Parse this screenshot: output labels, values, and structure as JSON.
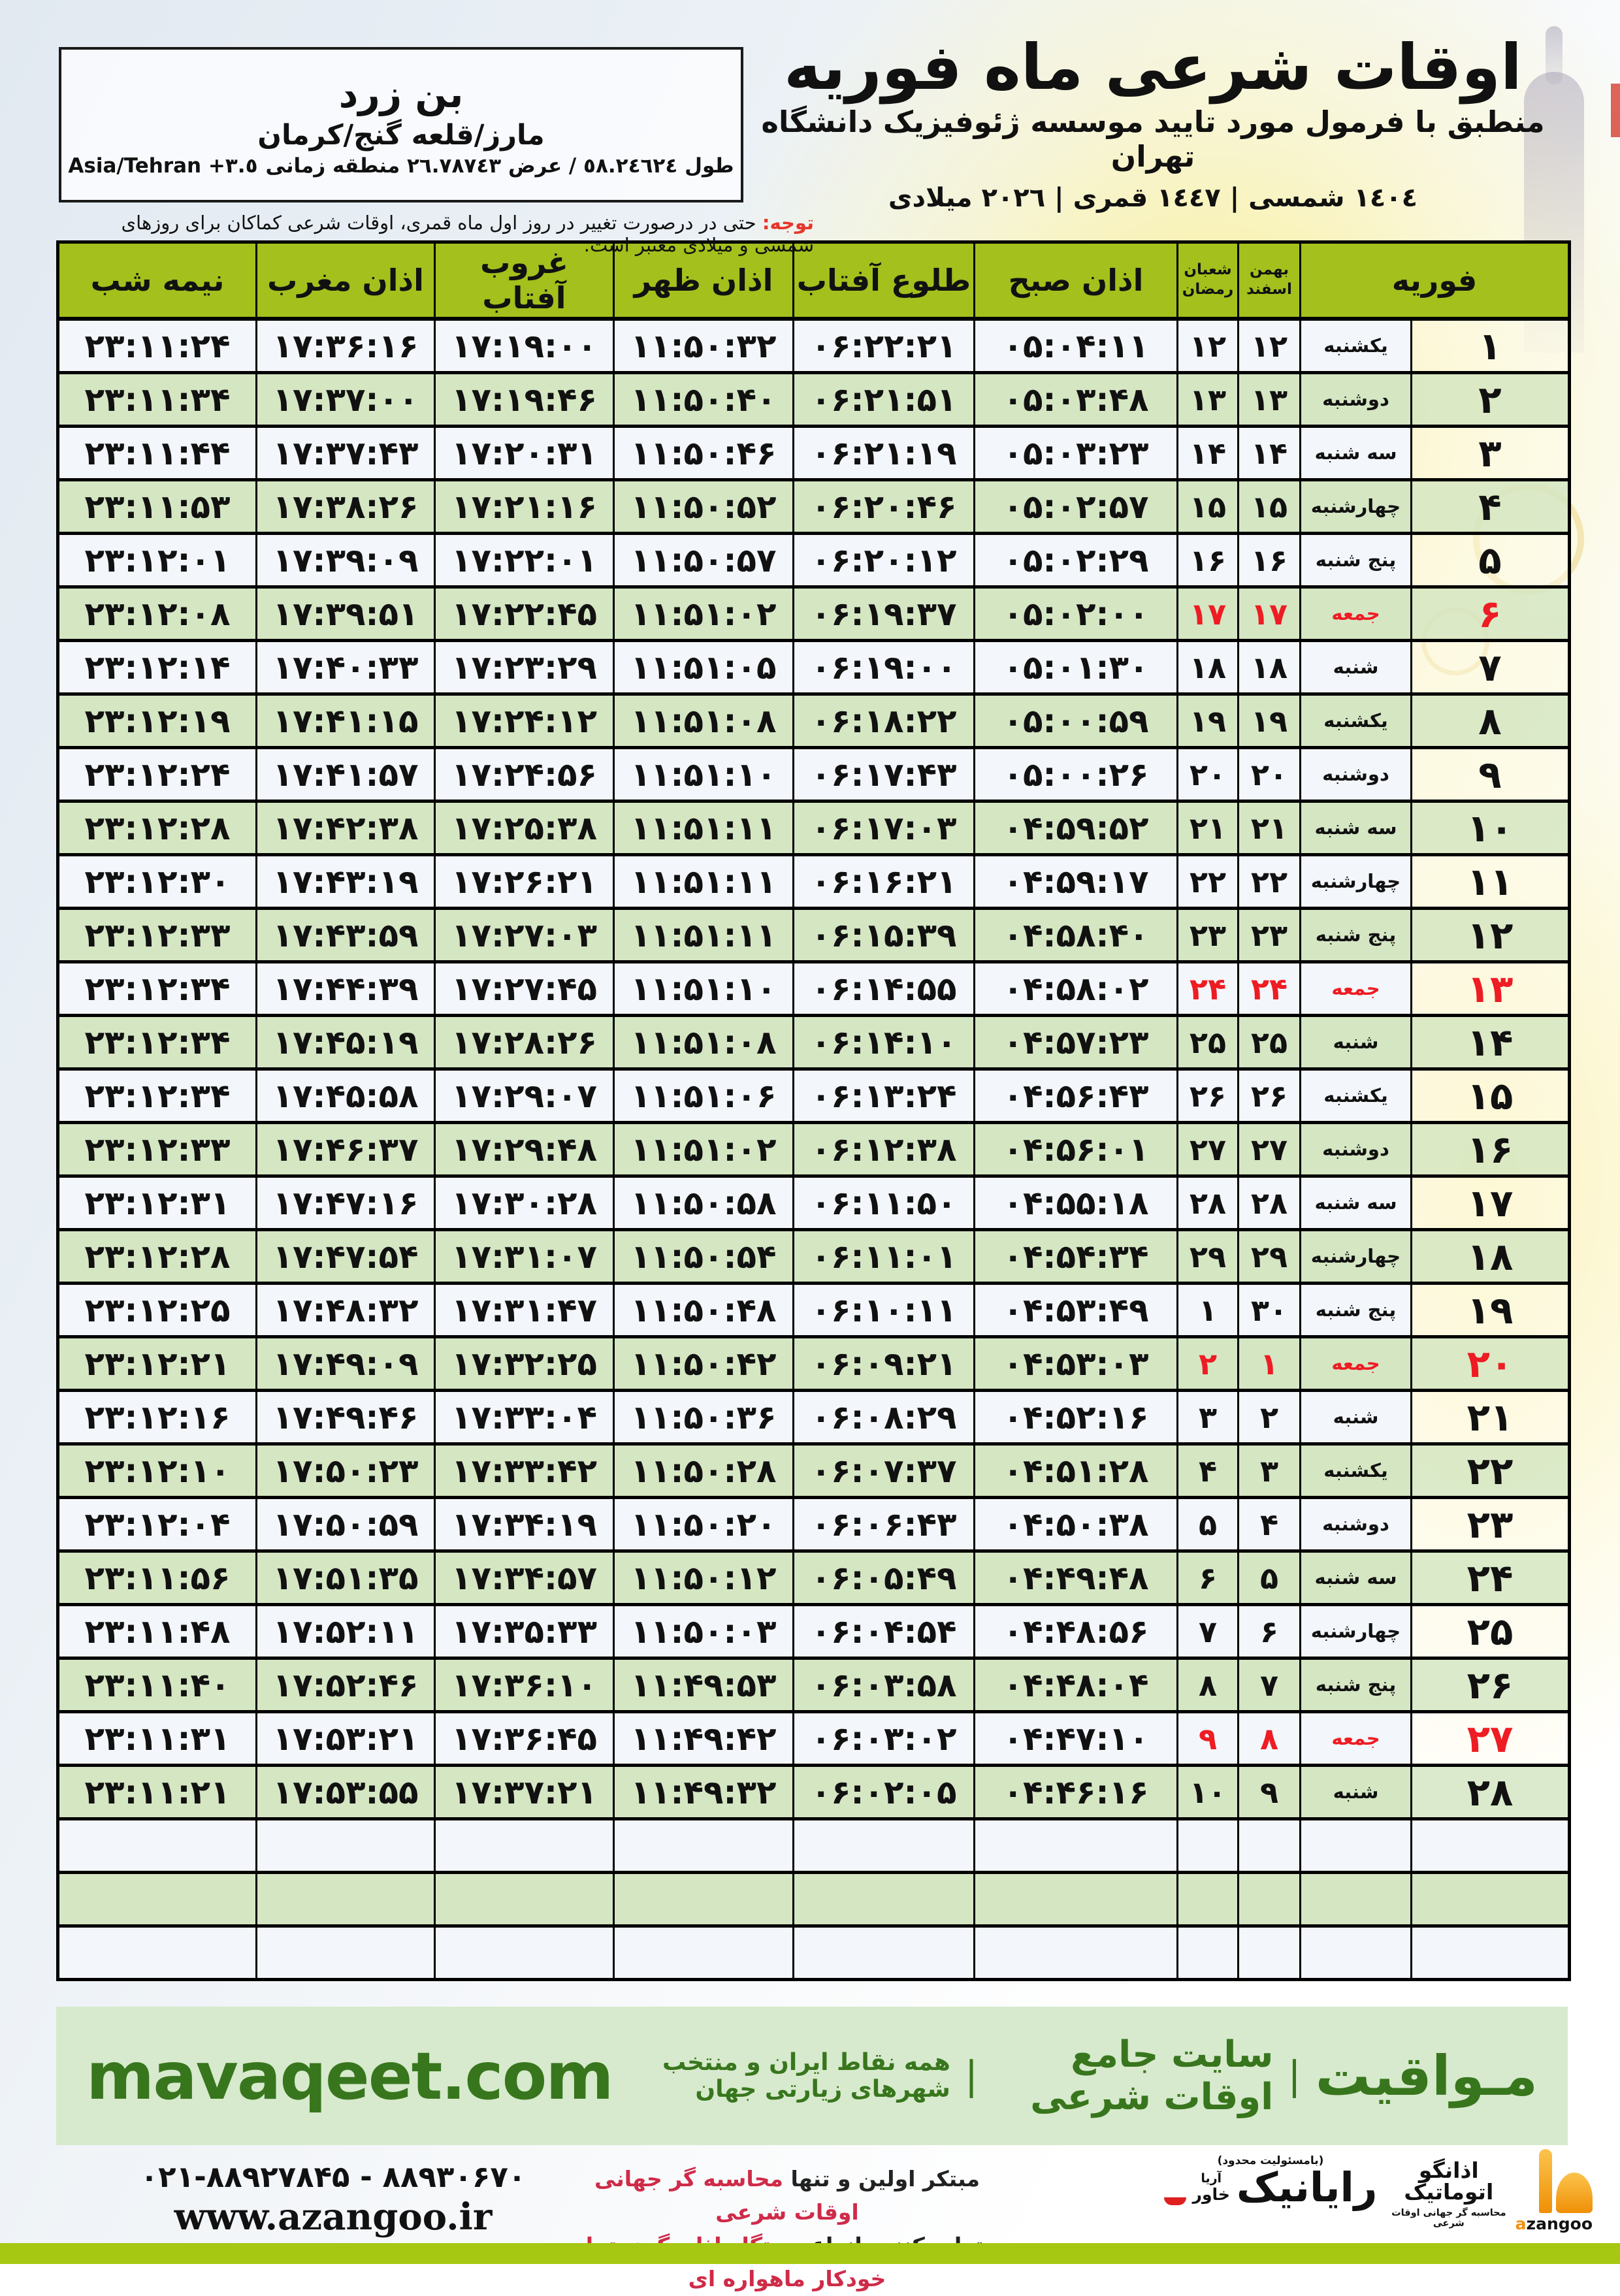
{
  "colors": {
    "header_green": "#a3c01c",
    "row_green": "#d5e6c3",
    "friday_red": "#ee1c23",
    "note_red": "#e8342a",
    "band_green": "#d7eacd",
    "brand_green": "#38761d",
    "bottom_band": "#a6c813",
    "footer_red": "#cf2b49"
  },
  "header": {
    "title": "اوقات شرعی ماه فوریه",
    "subtitle": "منطبق با فرمول مورد تایید موسسه ژئوفیزیک دانشگاه تهران",
    "calendar_line": "١٤٠٤ شمسی | ١٤٤٧ قمری | ٢٠٢٦ میلادی"
  },
  "location": {
    "name": "بن زرد",
    "region": "مارز/قلعه گنج/کرمان",
    "coords_rtl": "طول ٥٨.٢٤٦٢٤ / عرض ٢٦.٧٨٧٤٣ منطقه زمانی",
    "timezone": "Asia/Tehran +٣.٥"
  },
  "note": {
    "label": "توجه:",
    "text": "حتی در درصورت تغییر در روز اول ماه قمری، اوقات شرعی کماکان برای روزهای شمسی و میلادی معتبر است."
  },
  "table": {
    "header": {
      "february": "فوریه",
      "bahman": "بهمن",
      "esfand": "اسفند",
      "shaban": "شعبان",
      "ramazan": "رمضان",
      "azan_sobh": "اذان صبح",
      "tolu_aftab": "طلوع آفتاب",
      "azan_zohr": "اذان ظهر",
      "ghorub_aftab": "غروب آفتاب",
      "azan_maghreb": "اذان مغرب",
      "nimeh_shab": "نیمه شب"
    },
    "empty_rows": 3,
    "rows": [
      {
        "feb": "۱",
        "weekday": "یکشنبه",
        "bahman": "۱۲",
        "shaban": "۱۲",
        "sobh": "۰۵:۰۴:۱۱",
        "tolu": "۰۶:۲۲:۲۱",
        "zohr": "۱۱:۵۰:۳۲",
        "ghorub": "۱۷:۱۹:۰۰",
        "maghreb": "۱۷:۳۶:۱۶",
        "nimeshab": "۲۳:۱۱:۲۴",
        "friday": false
      },
      {
        "feb": "۲",
        "weekday": "دوشنبه",
        "bahman": "۱۳",
        "shaban": "۱۳",
        "sobh": "۰۵:۰۳:۴۸",
        "tolu": "۰۶:۲۱:۵۱",
        "zohr": "۱۱:۵۰:۴۰",
        "ghorub": "۱۷:۱۹:۴۶",
        "maghreb": "۱۷:۳۷:۰۰",
        "nimeshab": "۲۳:۱۱:۳۴",
        "friday": false
      },
      {
        "feb": "۳",
        "weekday": "سه شنبه",
        "bahman": "۱۴",
        "shaban": "۱۴",
        "sobh": "۰۵:۰۳:۲۳",
        "tolu": "۰۶:۲۱:۱۹",
        "zohr": "۱۱:۵۰:۴۶",
        "ghorub": "۱۷:۲۰:۳۱",
        "maghreb": "۱۷:۳۷:۴۳",
        "nimeshab": "۲۳:۱۱:۴۴",
        "friday": false
      },
      {
        "feb": "۴",
        "weekday": "چهارشنبه",
        "bahman": "۱۵",
        "shaban": "۱۵",
        "sobh": "۰۵:۰۲:۵۷",
        "tolu": "۰۶:۲۰:۴۶",
        "zohr": "۱۱:۵۰:۵۲",
        "ghorub": "۱۷:۲۱:۱۶",
        "maghreb": "۱۷:۳۸:۲۶",
        "nimeshab": "۲۳:۱۱:۵۳",
        "friday": false
      },
      {
        "feb": "۵",
        "weekday": "پنج شنبه",
        "bahman": "۱۶",
        "shaban": "۱۶",
        "sobh": "۰۵:۰۲:۲۹",
        "tolu": "۰۶:۲۰:۱۲",
        "zohr": "۱۱:۵۰:۵۷",
        "ghorub": "۱۷:۲۲:۰۱",
        "maghreb": "۱۷:۳۹:۰۹",
        "nimeshab": "۲۳:۱۲:۰۱",
        "friday": false
      },
      {
        "feb": "۶",
        "weekday": "جمعه",
        "bahman": "۱۷",
        "shaban": "۱۷",
        "sobh": "۰۵:۰۲:۰۰",
        "tolu": "۰۶:۱۹:۳۷",
        "zohr": "۱۱:۵۱:۰۲",
        "ghorub": "۱۷:۲۲:۴۵",
        "maghreb": "۱۷:۳۹:۵۱",
        "nimeshab": "۲۳:۱۲:۰۸",
        "friday": true
      },
      {
        "feb": "۷",
        "weekday": "شنبه",
        "bahman": "۱۸",
        "shaban": "۱۸",
        "sobh": "۰۵:۰۱:۳۰",
        "tolu": "۰۶:۱۹:۰۰",
        "zohr": "۱۱:۵۱:۰۵",
        "ghorub": "۱۷:۲۳:۲۹",
        "maghreb": "۱۷:۴۰:۳۳",
        "nimeshab": "۲۳:۱۲:۱۴",
        "friday": false
      },
      {
        "feb": "۸",
        "weekday": "یکشنبه",
        "bahman": "۱۹",
        "shaban": "۱۹",
        "sobh": "۰۵:۰۰:۵۹",
        "tolu": "۰۶:۱۸:۲۲",
        "zohr": "۱۱:۵۱:۰۸",
        "ghorub": "۱۷:۲۴:۱۲",
        "maghreb": "۱۷:۴۱:۱۵",
        "nimeshab": "۲۳:۱۲:۱۹",
        "friday": false
      },
      {
        "feb": "۹",
        "weekday": "دوشنبه",
        "bahman": "۲۰",
        "shaban": "۲۰",
        "sobh": "۰۵:۰۰:۲۶",
        "tolu": "۰۶:۱۷:۴۳",
        "zohr": "۱۱:۵۱:۱۰",
        "ghorub": "۱۷:۲۴:۵۶",
        "maghreb": "۱۷:۴۱:۵۷",
        "nimeshab": "۲۳:۱۲:۲۴",
        "friday": false
      },
      {
        "feb": "۱۰",
        "weekday": "سه شنبه",
        "bahman": "۲۱",
        "shaban": "۲۱",
        "sobh": "۰۴:۵۹:۵۲",
        "tolu": "۰۶:۱۷:۰۳",
        "zohr": "۱۱:۵۱:۱۱",
        "ghorub": "۱۷:۲۵:۳۸",
        "maghreb": "۱۷:۴۲:۳۸",
        "nimeshab": "۲۳:۱۲:۲۸",
        "friday": false
      },
      {
        "feb": "۱۱",
        "weekday": "چهارشنبه",
        "bahman": "۲۲",
        "shaban": "۲۲",
        "sobh": "۰۴:۵۹:۱۷",
        "tolu": "۰۶:۱۶:۲۱",
        "zohr": "۱۱:۵۱:۱۱",
        "ghorub": "۱۷:۲۶:۲۱",
        "maghreb": "۱۷:۴۳:۱۹",
        "nimeshab": "۲۳:۱۲:۳۰",
        "friday": false
      },
      {
        "feb": "۱۲",
        "weekday": "پنج شنبه",
        "bahman": "۲۳",
        "shaban": "۲۳",
        "sobh": "۰۴:۵۸:۴۰",
        "tolu": "۰۶:۱۵:۳۹",
        "zohr": "۱۱:۵۱:۱۱",
        "ghorub": "۱۷:۲۷:۰۳",
        "maghreb": "۱۷:۴۳:۵۹",
        "nimeshab": "۲۳:۱۲:۳۳",
        "friday": false
      },
      {
        "feb": "۱۳",
        "weekday": "جمعه",
        "bahman": "۲۴",
        "shaban": "۲۴",
        "sobh": "۰۴:۵۸:۰۲",
        "tolu": "۰۶:۱۴:۵۵",
        "zohr": "۱۱:۵۱:۱۰",
        "ghorub": "۱۷:۲۷:۴۵",
        "maghreb": "۱۷:۴۴:۳۹",
        "nimeshab": "۲۳:۱۲:۳۴",
        "friday": true
      },
      {
        "feb": "۱۴",
        "weekday": "شنبه",
        "bahman": "۲۵",
        "shaban": "۲۵",
        "sobh": "۰۴:۵۷:۲۳",
        "tolu": "۰۶:۱۴:۱۰",
        "zohr": "۱۱:۵۱:۰۸",
        "ghorub": "۱۷:۲۸:۲۶",
        "maghreb": "۱۷:۴۵:۱۹",
        "nimeshab": "۲۳:۱۲:۳۴",
        "friday": false
      },
      {
        "feb": "۱۵",
        "weekday": "یکشنبه",
        "bahman": "۲۶",
        "shaban": "۲۶",
        "sobh": "۰۴:۵۶:۴۳",
        "tolu": "۰۶:۱۳:۲۴",
        "zohr": "۱۱:۵۱:۰۶",
        "ghorub": "۱۷:۲۹:۰۷",
        "maghreb": "۱۷:۴۵:۵۸",
        "nimeshab": "۲۳:۱۲:۳۴",
        "friday": false
      },
      {
        "feb": "۱۶",
        "weekday": "دوشنبه",
        "bahman": "۲۷",
        "shaban": "۲۷",
        "sobh": "۰۴:۵۶:۰۱",
        "tolu": "۰۶:۱۲:۳۸",
        "zohr": "۱۱:۵۱:۰۲",
        "ghorub": "۱۷:۲۹:۴۸",
        "maghreb": "۱۷:۴۶:۳۷",
        "nimeshab": "۲۳:۱۲:۳۳",
        "friday": false
      },
      {
        "feb": "۱۷",
        "weekday": "سه شنبه",
        "bahman": "۲۸",
        "shaban": "۲۸",
        "sobh": "۰۴:۵۵:۱۸",
        "tolu": "۰۶:۱۱:۵۰",
        "zohr": "۱۱:۵۰:۵۸",
        "ghorub": "۱۷:۳۰:۲۸",
        "maghreb": "۱۷:۴۷:۱۶",
        "nimeshab": "۲۳:۱۲:۳۱",
        "friday": false
      },
      {
        "feb": "۱۸",
        "weekday": "چهارشنبه",
        "bahman": "۲۹",
        "shaban": "۲۹",
        "sobh": "۰۴:۵۴:۳۴",
        "tolu": "۰۶:۱۱:۰۱",
        "zohr": "۱۱:۵۰:۵۴",
        "ghorub": "۱۷:۳۱:۰۷",
        "maghreb": "۱۷:۴۷:۵۴",
        "nimeshab": "۲۳:۱۲:۲۸",
        "friday": false
      },
      {
        "feb": "۱۹",
        "weekday": "پنج شنبه",
        "bahman": "۳۰",
        "shaban": "۱",
        "sobh": "۰۴:۵۳:۴۹",
        "tolu": "۰۶:۱۰:۱۱",
        "zohr": "۱۱:۵۰:۴۸",
        "ghorub": "۱۷:۳۱:۴۷",
        "maghreb": "۱۷:۴۸:۳۲",
        "nimeshab": "۲۳:۱۲:۲۵",
        "friday": false
      },
      {
        "feb": "۲۰",
        "weekday": "جمعه",
        "bahman": "۱",
        "shaban": "۲",
        "sobh": "۰۴:۵۳:۰۳",
        "tolu": "۰۶:۰۹:۲۱",
        "zohr": "۱۱:۵۰:۴۲",
        "ghorub": "۱۷:۳۲:۲۵",
        "maghreb": "۱۷:۴۹:۰۹",
        "nimeshab": "۲۳:۱۲:۲۱",
        "friday": true
      },
      {
        "feb": "۲۱",
        "weekday": "شنبه",
        "bahman": "۲",
        "shaban": "۳",
        "sobh": "۰۴:۵۲:۱۶",
        "tolu": "۰۶:۰۸:۲۹",
        "zohr": "۱۱:۵۰:۳۶",
        "ghorub": "۱۷:۳۳:۰۴",
        "maghreb": "۱۷:۴۹:۴۶",
        "nimeshab": "۲۳:۱۲:۱۶",
        "friday": false
      },
      {
        "feb": "۲۲",
        "weekday": "یکشنبه",
        "bahman": "۳",
        "shaban": "۴",
        "sobh": "۰۴:۵۱:۲۸",
        "tolu": "۰۶:۰۷:۳۷",
        "zohr": "۱۱:۵۰:۲۸",
        "ghorub": "۱۷:۳۳:۴۲",
        "maghreb": "۱۷:۵۰:۲۳",
        "nimeshab": "۲۳:۱۲:۱۰",
        "friday": false
      },
      {
        "feb": "۲۳",
        "weekday": "دوشنبه",
        "bahman": "۴",
        "shaban": "۵",
        "sobh": "۰۴:۵۰:۳۸",
        "tolu": "۰۶:۰۶:۴۳",
        "zohr": "۱۱:۵۰:۲۰",
        "ghorub": "۱۷:۳۴:۱۹",
        "maghreb": "۱۷:۵۰:۵۹",
        "nimeshab": "۲۳:۱۲:۰۴",
        "friday": false
      },
      {
        "feb": "۲۴",
        "weekday": "سه شنبه",
        "bahman": "۵",
        "shaban": "۶",
        "sobh": "۰۴:۴۹:۴۸",
        "tolu": "۰۶:۰۵:۴۹",
        "zohr": "۱۱:۵۰:۱۲",
        "ghorub": "۱۷:۳۴:۵۷",
        "maghreb": "۱۷:۵۱:۳۵",
        "nimeshab": "۲۳:۱۱:۵۶",
        "friday": false
      },
      {
        "feb": "۲۵",
        "weekday": "چهارشنبه",
        "bahman": "۶",
        "shaban": "۷",
        "sobh": "۰۴:۴۸:۵۶",
        "tolu": "۰۶:۰۴:۵۴",
        "zohr": "۱۱:۵۰:۰۳",
        "ghorub": "۱۷:۳۵:۳۳",
        "maghreb": "۱۷:۵۲:۱۱",
        "nimeshab": "۲۳:۱۱:۴۸",
        "friday": false
      },
      {
        "feb": "۲۶",
        "weekday": "پنج شنبه",
        "bahman": "۷",
        "shaban": "۸",
        "sobh": "۰۴:۴۸:۰۴",
        "tolu": "۰۶:۰۳:۵۸",
        "zohr": "۱۱:۴۹:۵۳",
        "ghorub": "۱۷:۳۶:۱۰",
        "maghreb": "۱۷:۵۲:۴۶",
        "nimeshab": "۲۳:۱۱:۴۰",
        "friday": false
      },
      {
        "feb": "۲۷",
        "weekday": "جمعه",
        "bahman": "۸",
        "shaban": "۹",
        "sobh": "۰۴:۴۷:۱۰",
        "tolu": "۰۶:۰۳:۰۲",
        "zohr": "۱۱:۴۹:۴۲",
        "ghorub": "۱۷:۳۶:۴۵",
        "maghreb": "۱۷:۵۳:۲۱",
        "nimeshab": "۲۳:۱۱:۳۱",
        "friday": true
      },
      {
        "feb": "۲۸",
        "weekday": "شنبه",
        "bahman": "۹",
        "shaban": "۱۰",
        "sobh": "۰۴:۴۶:۱۶",
        "tolu": "۰۶:۰۲:۰۵",
        "zohr": "۱۱:۴۹:۳۲",
        "ghorub": "۱۷:۳۷:۲۱",
        "maghreb": "۱۷:۵۳:۵۵",
        "nimeshab": "۲۳:۱۱:۲۱",
        "friday": false
      }
    ]
  },
  "mavaqeet": {
    "site": "mavaqeet.com",
    "brand": "مـواقیت",
    "tagline1": "سایت جامع اوقات شرعی",
    "tagline2": "همه نقاط ایران و منتخب شهرهای زیارتی جهان"
  },
  "footer": {
    "phone": "۰۲۱-۸۸۹۲۷۸۴۵ - ۸۸۹۳۰۶۷۰",
    "website": "www.azangoo.ir",
    "line1_black": "مبتکر اولین و تنها",
    "line1_red": "محاسبه گر جهانی اوقات شرعی",
    "line2_black": "و تولید کننده انواع",
    "line2_red": "دستگاه اذان گوی تمام خودکار ماهواره ای",
    "rayanik": {
      "note": "(بامسئولیت محدود)",
      "name": "رایانیک",
      "sub1": "آریا",
      "sub2": "خاور"
    },
    "azangoo": {
      "fa": "اذانگو اتوماتیک",
      "sub": "محاسبه گر جهانی اوقات شرعی",
      "en_a": "a",
      "en_rest": "zangoo"
    }
  }
}
